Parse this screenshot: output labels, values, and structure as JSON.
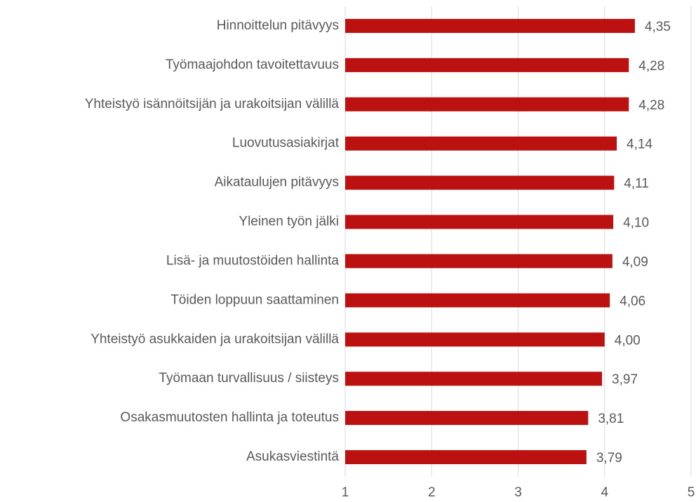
{
  "chart_data": {
    "type": "barh",
    "categories": [
      "Hinnoittelun pitävyys",
      "Työmaajohdon tavoitettavuus",
      "Yhteistyö isännöitsijän ja urakoitsijan välillä",
      "Luovutusasiakirjat",
      "Aikataulujen pitävyys",
      "Yleinen työn jälki",
      "Lisä- ja muutostöiden hallinta",
      "Töiden loppuun saattaminen",
      "Yhteistyö asukkaiden ja urakoitsijan välillä",
      "Työmaan turvallisuus / siisteys",
      "Osakasmuutosten hallinta ja toteutus",
      "Asukasviestintä"
    ],
    "values": [
      4.35,
      4.28,
      4.28,
      4.14,
      4.11,
      4.1,
      4.09,
      4.06,
      4.0,
      3.97,
      3.81,
      3.79
    ],
    "value_labels": [
      "4,35",
      "4,28",
      "4,28",
      "4,14",
      "4,11",
      "4,10",
      "4,09",
      "4,06",
      "4,00",
      "3,97",
      "3,81",
      "3,79"
    ],
    "color": "#bb1111",
    "xlim": [
      1,
      5
    ],
    "xticks": [
      1,
      2,
      3,
      4,
      5
    ],
    "grid": true
  }
}
